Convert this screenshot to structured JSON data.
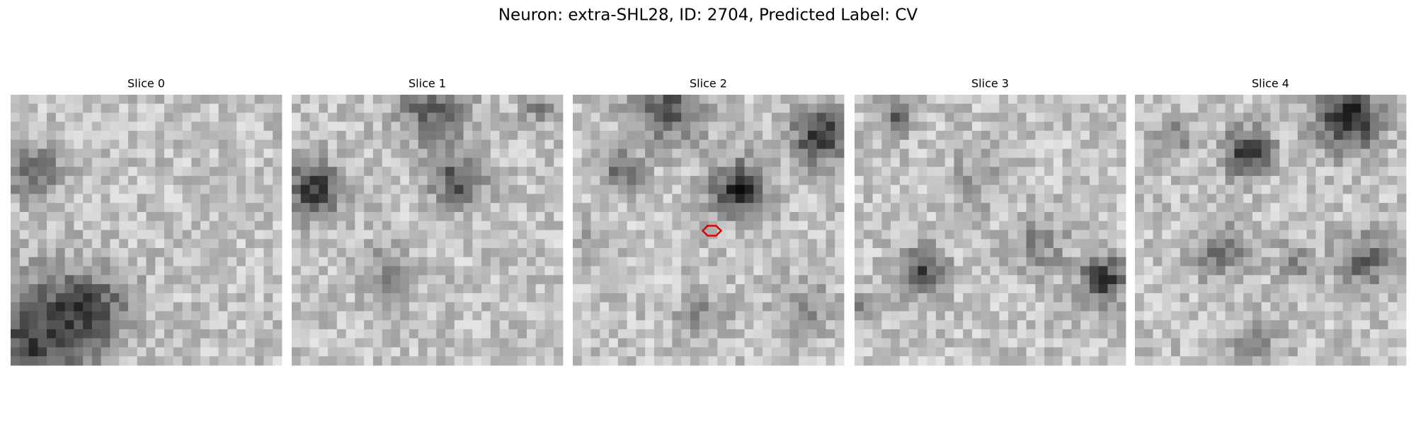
{
  "title": "Neuron: extra-SHL28, ID: 2704, Predicted Label: CV",
  "panels": [
    {
      "label": "Slice 0"
    },
    {
      "label": "Slice 1"
    },
    {
      "label": "Slice 2"
    },
    {
      "label": "Slice 3"
    },
    {
      "label": "Slice 4"
    }
  ]
}
